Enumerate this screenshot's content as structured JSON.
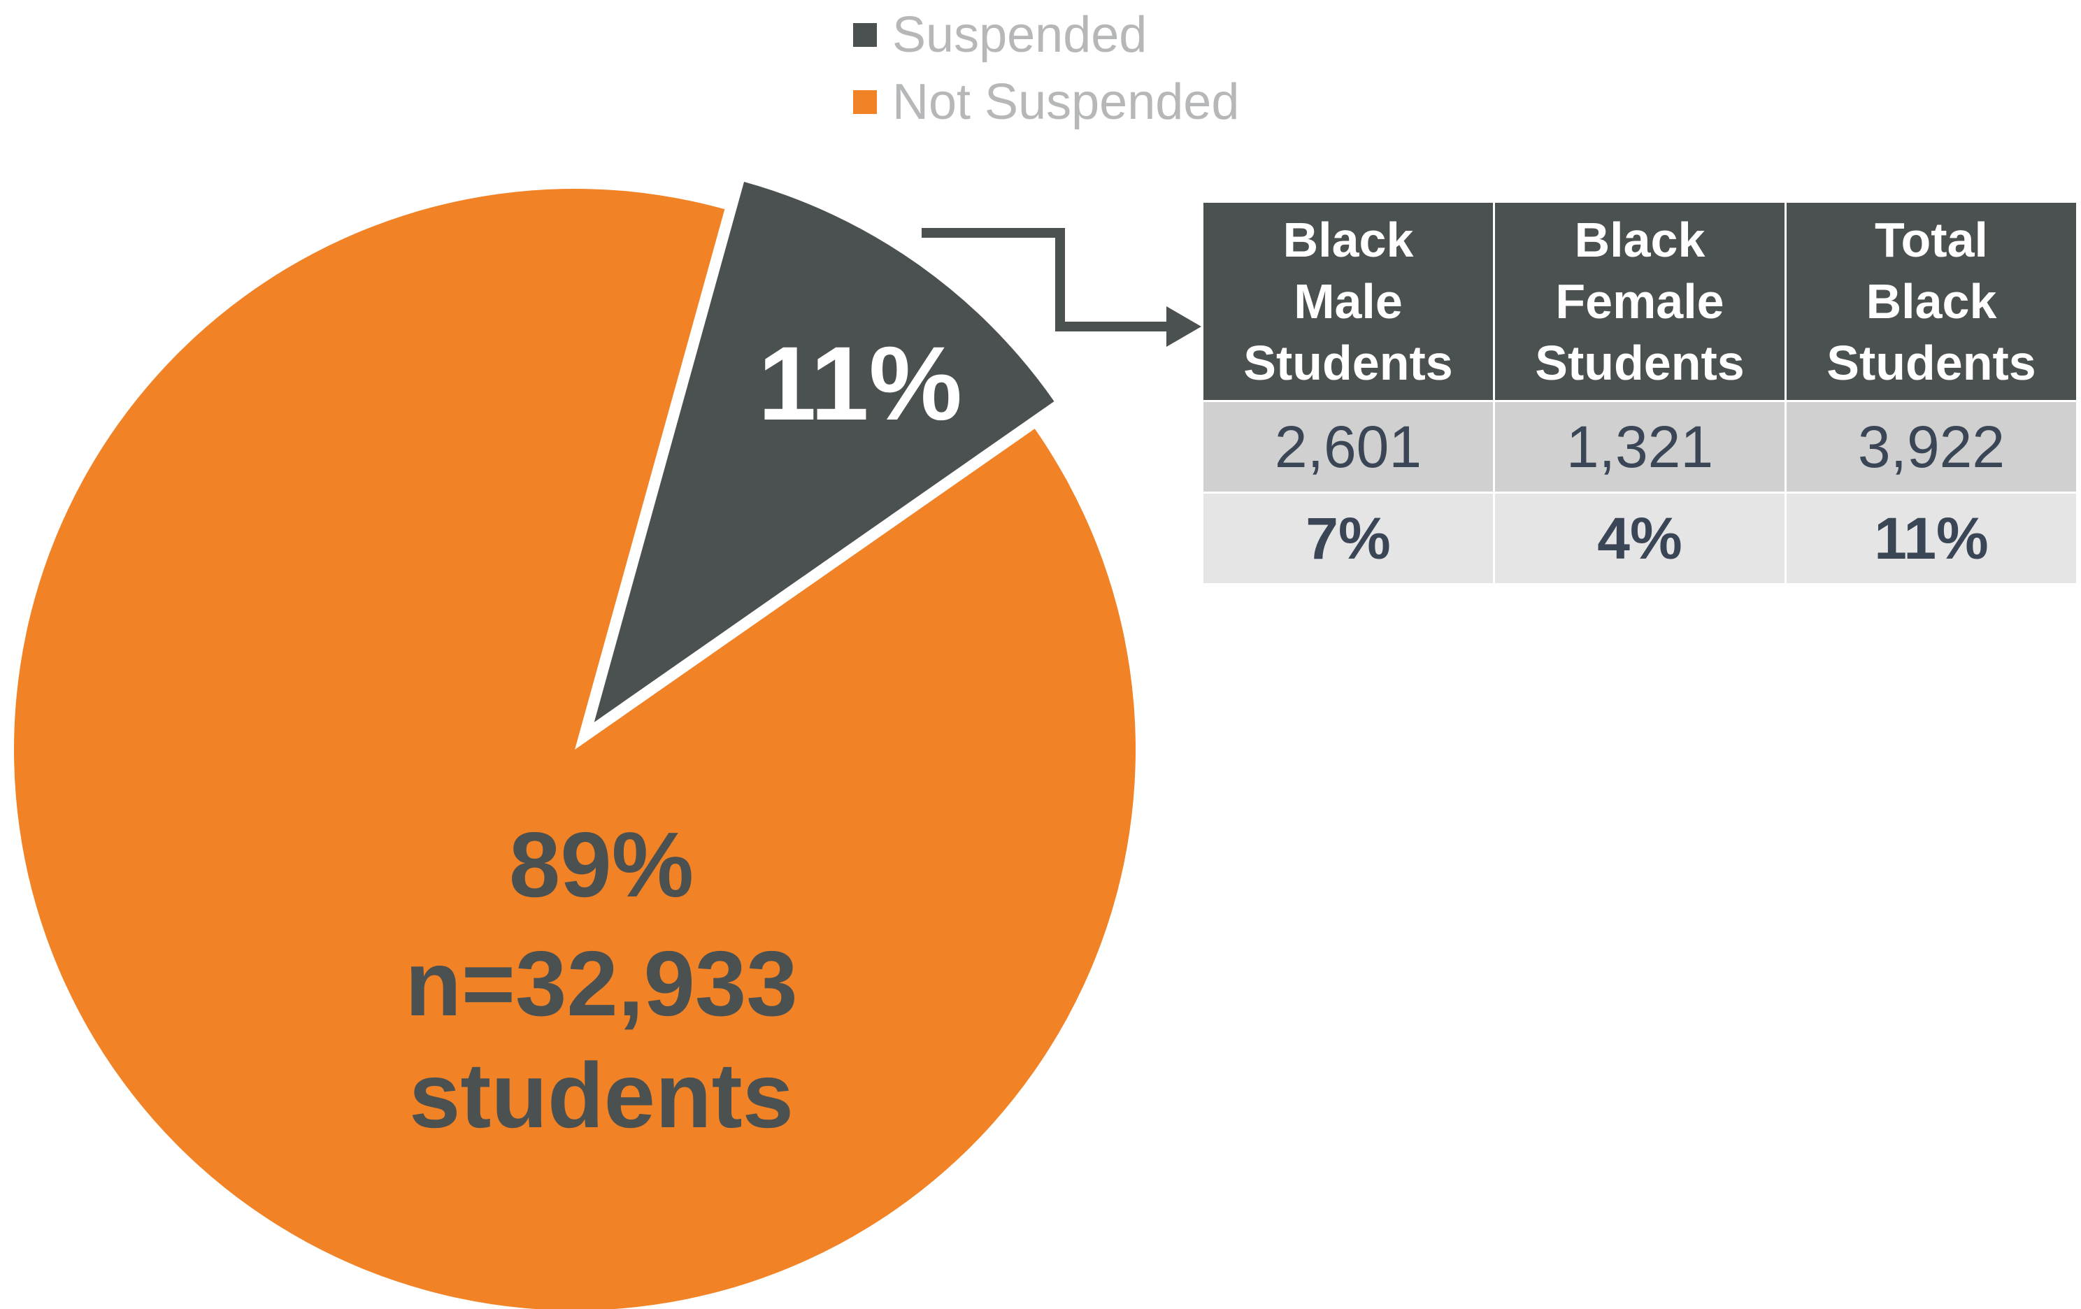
{
  "chart_data": {
    "type": "pie",
    "slices": [
      {
        "label": "Suspended",
        "value": 11,
        "color": "#4b5150",
        "exploded": true
      },
      {
        "label": "Not Suspended",
        "value": 89,
        "color": "#f28226"
      }
    ],
    "labels": {
      "suspended_pct": "11%",
      "not_suspended_pct": "89%",
      "not_suspended_n": "n=32,933",
      "not_suspended_unit": "students"
    },
    "legend": {
      "placement": "top",
      "items": [
        {
          "label": "Suspended",
          "color": "#4b5150"
        },
        {
          "label": "Not Suspended",
          "color": "#f28226"
        }
      ]
    }
  },
  "table": {
    "headers": [
      [
        "Black",
        "Male",
        "Students"
      ],
      [
        "Black",
        "Female",
        "Students"
      ],
      [
        "Total",
        "Black",
        "Students"
      ]
    ],
    "counts": [
      "2,601",
      "1,321",
      "3,922"
    ],
    "percents": [
      "7%",
      "4%",
      "11%"
    ]
  },
  "colors": {
    "suspended": "#4b5150",
    "not_suspended": "#f28226",
    "label_dark": "#4b5150",
    "label_light": "#ffffff",
    "legend_text": "#b5b7b9",
    "table_header_bg": "#4b5150",
    "table_count_bg": "#d0d0d0",
    "table_pct_bg": "#e5e5e5",
    "table_text": "#3a4556"
  }
}
